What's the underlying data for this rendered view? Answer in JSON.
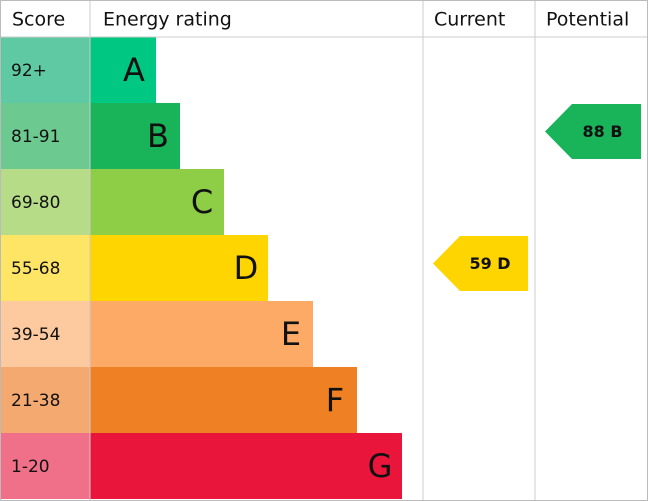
{
  "headers": {
    "score": "Score",
    "rating": "Energy rating",
    "current": "Current",
    "potential": "Potential"
  },
  "rows": [
    {
      "score": "92+",
      "band": "A",
      "color": "#00c781",
      "score_color": "#5fc9a3"
    },
    {
      "score": "81-91",
      "band": "B",
      "color": "#19b459",
      "score_color": "#6cc98f"
    },
    {
      "score": "69-80",
      "band": "C",
      "color": "#8dce46",
      "score_color": "#b6dc88"
    },
    {
      "score": "55-68",
      "band": "D",
      "color": "#ffd500",
      "score_color": "#ffe566"
    },
    {
      "score": "39-54",
      "band": "E",
      "color": "#fcaa65",
      "score_color": "#fdc99f"
    },
    {
      "score": "21-38",
      "band": "F",
      "color": "#ef8023",
      "score_color": "#f4a971"
    },
    {
      "score": "1-20",
      "band": "G",
      "color": "#e9153b",
      "score_color": "#f07089"
    }
  ],
  "current": {
    "label": "59 D",
    "row": 3,
    "color": "#ffd500"
  },
  "potential": {
    "label": "88 B",
    "row": 1,
    "color": "#19b459"
  }
}
